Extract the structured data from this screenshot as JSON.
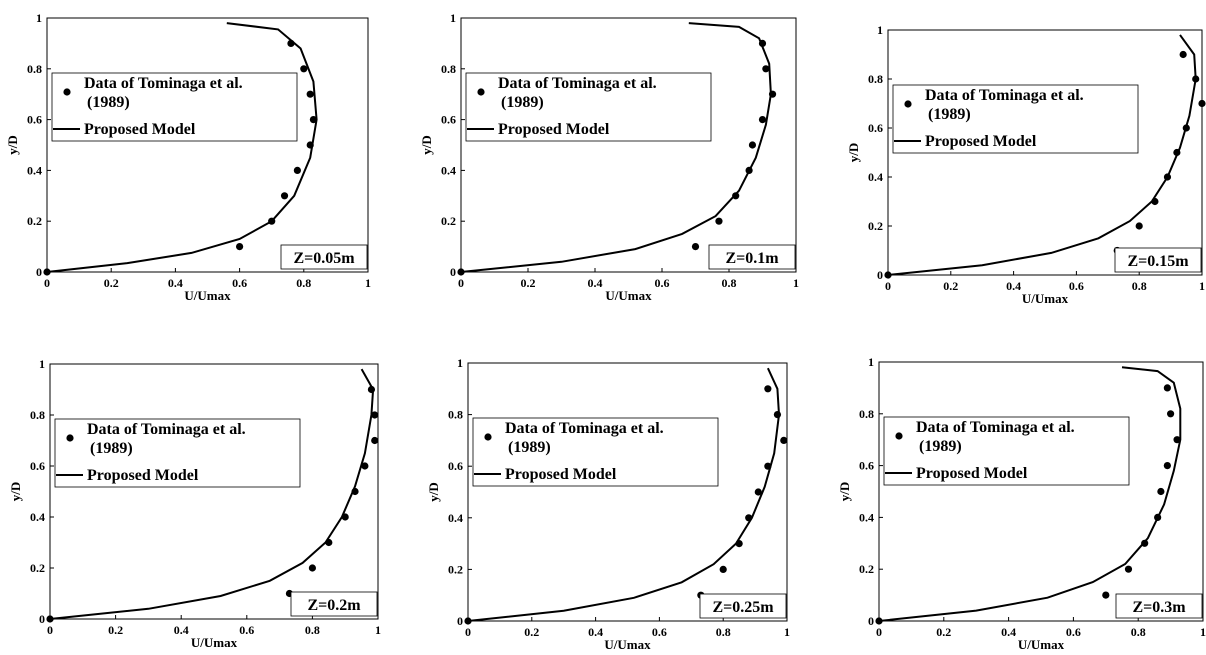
{
  "chart_data": [
    {
      "type": "scatter",
      "xlabel": "U/Umax",
      "ylabel": "y/D",
      "xlim": [
        0,
        1
      ],
      "ylim": [
        0,
        1
      ],
      "xticks": [
        "0",
        "0.2",
        "0.4",
        "0.6",
        "0.8",
        "1"
      ],
      "yticks": [
        "0",
        "0.2",
        "0.4",
        "0.6",
        "0.8",
        "1"
      ],
      "legend": {
        "data_label_1": "Data of Tominaga et al.",
        "data_label_2": "(1989)",
        "model_label": "Proposed Model"
      },
      "annotation": "Z=0.05m",
      "series": [
        {
          "name": "Data of Tominaga et al. (1989)",
          "x": [
            0.0,
            0.6,
            0.7,
            0.74,
            0.78,
            0.82,
            0.83,
            0.82,
            0.8,
            0.76
          ],
          "y": [
            0.0,
            0.1,
            0.2,
            0.3,
            0.4,
            0.5,
            0.6,
            0.7,
            0.8,
            0.9
          ]
        },
        {
          "name": "Proposed Model",
          "x": [
            0.0,
            0.25,
            0.45,
            0.6,
            0.7,
            0.77,
            0.82,
            0.84,
            0.83,
            0.79,
            0.72,
            0.56
          ],
          "y": [
            0.0,
            0.035,
            0.075,
            0.13,
            0.2,
            0.3,
            0.45,
            0.6,
            0.75,
            0.88,
            0.955,
            0.98
          ]
        }
      ]
    },
    {
      "type": "scatter",
      "xlabel": "U/Umax",
      "ylabel": "y/D",
      "xlim": [
        0,
        1
      ],
      "ylim": [
        0,
        1
      ],
      "xticks": [
        "0",
        "0.2",
        "0.4",
        "0.6",
        "0.8",
        "1"
      ],
      "yticks": [
        "0",
        "0.2",
        "0.4",
        "0.6",
        "0.8",
        "1"
      ],
      "legend": {
        "data_label_1": "Data of Tominaga et al.",
        "data_label_2": "(1989)",
        "model_label": "Proposed Model"
      },
      "annotation": "Z=0.1m",
      "series": [
        {
          "name": "Data of Tominaga et al. (1989)",
          "x": [
            0.0,
            0.7,
            0.77,
            0.82,
            0.86,
            0.87,
            0.9,
            0.93,
            0.91,
            0.9
          ],
          "y": [
            0.0,
            0.1,
            0.2,
            0.3,
            0.4,
            0.5,
            0.6,
            0.7,
            0.8,
            0.9
          ]
        },
        {
          "name": "Proposed Model",
          "x": [
            0.0,
            0.3,
            0.52,
            0.66,
            0.76,
            0.83,
            0.88,
            0.91,
            0.925,
            0.92,
            0.89,
            0.83,
            0.68
          ],
          "y": [
            0.0,
            0.04,
            0.09,
            0.15,
            0.22,
            0.32,
            0.45,
            0.58,
            0.7,
            0.82,
            0.92,
            0.965,
            0.98
          ]
        }
      ]
    },
    {
      "type": "scatter",
      "xlabel": "U/Umax",
      "ylabel": "y/D",
      "xlim": [
        0,
        1
      ],
      "ylim": [
        0,
        1
      ],
      "xticks": [
        "0",
        "0.2",
        "0.4",
        "0.6",
        "0.8",
        "1"
      ],
      "yticks": [
        "0",
        "0.2",
        "0.4",
        "0.6",
        "0.8",
        "1"
      ],
      "legend": {
        "data_label_1": "Data of Tominaga et al.",
        "data_label_2": "(1989)",
        "model_label": "Proposed Model"
      },
      "annotation": "Z=0.15m",
      "series": [
        {
          "name": "Data of Tominaga et al. (1989)",
          "x": [
            0.0,
            0.73,
            0.8,
            0.85,
            0.89,
            0.92,
            0.95,
            1.0,
            0.98,
            0.94
          ],
          "y": [
            0.0,
            0.1,
            0.2,
            0.3,
            0.4,
            0.5,
            0.6,
            0.7,
            0.8,
            0.9
          ]
        },
        {
          "name": "Proposed Model",
          "x": [
            0.0,
            0.3,
            0.52,
            0.67,
            0.77,
            0.84,
            0.89,
            0.93,
            0.96,
            0.98,
            0.975,
            0.93
          ],
          "y": [
            0.0,
            0.04,
            0.09,
            0.15,
            0.22,
            0.3,
            0.4,
            0.52,
            0.65,
            0.8,
            0.9,
            0.98
          ]
        }
      ]
    },
    {
      "type": "scatter",
      "xlabel": "U/Umax",
      "ylabel": "y/D",
      "xlim": [
        0,
        1
      ],
      "ylim": [
        0,
        1
      ],
      "xticks": [
        "0",
        "0.2",
        "0.4",
        "0.6",
        "0.8",
        "1"
      ],
      "yticks": [
        "0",
        "0.2",
        "0.4",
        "0.6",
        "0.8",
        "1"
      ],
      "legend": {
        "data_label_1": "Data of Tominaga et al.",
        "data_label_2": "(1989)",
        "model_label": "Proposed Model"
      },
      "annotation": "Z=0.2m",
      "series": [
        {
          "name": "Data of Tominaga et al. (1989)",
          "x": [
            0.0,
            0.73,
            0.8,
            0.85,
            0.9,
            0.93,
            0.96,
            0.99,
            0.99,
            0.98
          ],
          "y": [
            0.0,
            0.1,
            0.2,
            0.3,
            0.4,
            0.5,
            0.6,
            0.7,
            0.8,
            0.9
          ]
        },
        {
          "name": "Proposed Model",
          "x": [
            0.0,
            0.3,
            0.52,
            0.67,
            0.77,
            0.84,
            0.89,
            0.93,
            0.96,
            0.98,
            0.985,
            0.95
          ],
          "y": [
            0.0,
            0.04,
            0.09,
            0.15,
            0.22,
            0.3,
            0.4,
            0.52,
            0.65,
            0.8,
            0.9,
            0.98
          ]
        }
      ]
    },
    {
      "type": "scatter",
      "xlabel": "U/Umax",
      "ylabel": "y/D",
      "xlim": [
        0,
        1
      ],
      "ylim": [
        0,
        1
      ],
      "xticks": [
        "0",
        "0.2",
        "0.4",
        "0.6",
        "0.8",
        "1"
      ],
      "yticks": [
        "0",
        "0.2",
        "0.4",
        "0.6",
        "0.8",
        "1"
      ],
      "legend": {
        "data_label_1": "Data of Tominaga et al.",
        "data_label_2": "(1989)",
        "model_label": "Proposed Model"
      },
      "annotation": "Z=0.25m",
      "series": [
        {
          "name": "Data of Tominaga et al. (1989)",
          "x": [
            0.0,
            0.73,
            0.8,
            0.85,
            0.88,
            0.91,
            0.94,
            0.99,
            0.97,
            0.94
          ],
          "y": [
            0.0,
            0.1,
            0.2,
            0.3,
            0.4,
            0.5,
            0.6,
            0.7,
            0.8,
            0.9
          ]
        },
        {
          "name": "Proposed Model",
          "x": [
            0.0,
            0.3,
            0.52,
            0.67,
            0.77,
            0.84,
            0.89,
            0.93,
            0.96,
            0.975,
            0.97,
            0.94
          ],
          "y": [
            0.0,
            0.04,
            0.09,
            0.15,
            0.22,
            0.3,
            0.4,
            0.52,
            0.65,
            0.8,
            0.9,
            0.98
          ]
        }
      ]
    },
    {
      "type": "scatter",
      "xlabel": "U/Umax",
      "ylabel": "y/D",
      "xlim": [
        0,
        1
      ],
      "ylim": [
        0,
        1
      ],
      "xticks": [
        "0",
        "0.2",
        "0.4",
        "0.6",
        "0.8",
        "1"
      ],
      "yticks": [
        "0",
        "0.2",
        "0.4",
        "0.6",
        "0.8",
        "1"
      ],
      "legend": {
        "data_label_1": "Data of Tominaga et al.",
        "data_label_2": "(1989)",
        "model_label": "Proposed Model"
      },
      "annotation": "Z=0.3m",
      "series": [
        {
          "name": "Data of Tominaga et al. (1989)",
          "x": [
            0.0,
            0.7,
            0.77,
            0.82,
            0.86,
            0.87,
            0.89,
            0.92,
            0.9,
            0.89
          ],
          "y": [
            0.0,
            0.1,
            0.2,
            0.3,
            0.4,
            0.5,
            0.6,
            0.7,
            0.8,
            0.9
          ]
        },
        {
          "name": "Proposed Model",
          "x": [
            0.0,
            0.3,
            0.52,
            0.66,
            0.76,
            0.83,
            0.88,
            0.91,
            0.93,
            0.93,
            0.91,
            0.86,
            0.75
          ],
          "y": [
            0.0,
            0.04,
            0.09,
            0.15,
            0.22,
            0.32,
            0.45,
            0.58,
            0.7,
            0.82,
            0.92,
            0.965,
            0.98
          ]
        }
      ]
    }
  ]
}
